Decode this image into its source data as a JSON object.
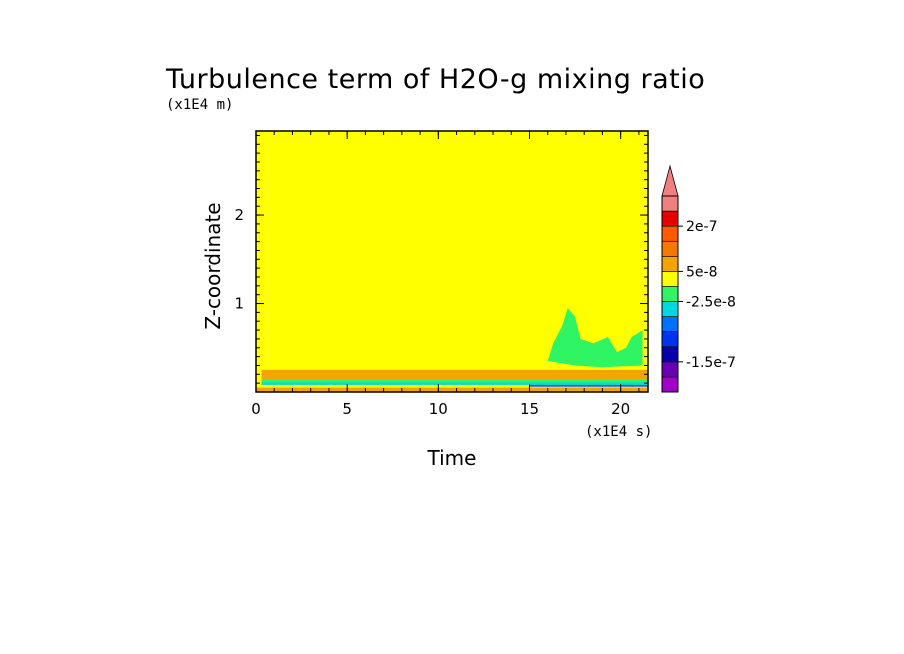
{
  "chart_data": {
    "type": "heatmap",
    "title": "Turbulence term of H2O-g mixing ratio",
    "xlabel": "Time",
    "ylabel": "Z-coordinate",
    "x_unit": "(x1E4 s)",
    "y_unit": "(x1E4 m)",
    "xlim": [
      0,
      21.5
    ],
    "ylim": [
      0,
      2.95
    ],
    "x_ticks": [
      0,
      5,
      10,
      15,
      20
    ],
    "y_ticks": [
      1,
      2
    ],
    "background_value": 0,
    "regions": [
      {
        "name": "surface-orange-layer",
        "x0": 0,
        "x1": 21.5,
        "y0": 0.0,
        "y1": 0.05,
        "color": "#f5a300"
      },
      {
        "name": "near-surface-blue",
        "x0": 15,
        "x1": 21.5,
        "y0": 0.06,
        "y1": 0.1,
        "color": "#1f52ff"
      },
      {
        "name": "near-surface-cyan",
        "x0": 0.3,
        "x1": 21.5,
        "y0": 0.08,
        "y1": 0.12,
        "color": "#00e0d0"
      },
      {
        "name": "near-surface-green",
        "x0": 0.3,
        "x1": 21.5,
        "y0": 0.11,
        "y1": 0.14,
        "color": "#2ff564"
      },
      {
        "name": "pbl-top-orange",
        "x0": 0.3,
        "x1": 21.5,
        "y0": 0.14,
        "y1": 0.25,
        "color": "#f5a300"
      },
      {
        "name": "afternoon-green-plume",
        "x0": 16,
        "x1": 21.2,
        "y0": 0.3,
        "y1": 0.95,
        "color": "#2ff564"
      }
    ],
    "colorbar": {
      "colors": [
        "#a000c8",
        "#6a00b4",
        "#0a00a8",
        "#0032f0",
        "#0070ff",
        "#00d8e0",
        "#2ff564",
        "#ffff00",
        "#f5a300",
        "#f57800",
        "#ff5a00",
        "#e60000",
        "#f08080"
      ],
      "labels": [
        "2e-7",
        "5e-8",
        "-2.5e-8",
        "-1.5e-7"
      ],
      "extend": "max"
    }
  }
}
